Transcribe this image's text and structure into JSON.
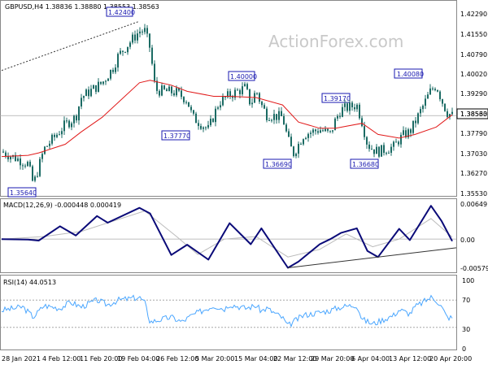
{
  "chart_data": [
    {
      "type": "candlestick",
      "header": "GBPUSD,H4  1.38836 1.38880 1.38553 1.38563",
      "watermark": "ActionForex.com",
      "ylim": [
        1.354,
        1.43
      ],
      "y_ticks": [
        "1.42290",
        "1.41550",
        "1.40790",
        "1.40020",
        "1.39290",
        "1.38530",
        "1.37790",
        "1.37030",
        "1.36270",
        "1.35530"
      ],
      "current_price": "1.38563",
      "annotations": [
        "1.42400",
        "1.40000",
        "1.40080",
        "1.39170",
        "1.37770",
        "1.36690",
        "1.36680",
        "1.35640"
      ],
      "price_path": [
        {
          "date": "28 Jan 2021",
          "price": 1.371
        },
        {
          "date": "2 Feb 2021",
          "price": 1.366
        },
        {
          "date": "3 Feb 2021",
          "price": 1.3575
        },
        {
          "date": "5 Feb 2021",
          "price": 1.372
        },
        {
          "date": "9 Feb 2021",
          "price": 1.382
        },
        {
          "date": "11 Feb 2021",
          "price": 1.385
        },
        {
          "date": "12 Feb 2021",
          "price": 1.393
        },
        {
          "date": "16 Feb 2021",
          "price": 1.399
        },
        {
          "date": "18 Feb 2021",
          "price": 1.405
        },
        {
          "date": "19 Feb 2021",
          "price": 1.41
        },
        {
          "date": "23 Feb 2021",
          "price": 1.42
        },
        {
          "date": "24 Feb 2021",
          "price": 1.42
        },
        {
          "date": "25 Feb 2021",
          "price": 1.413
        },
        {
          "date": "26 Feb 2021",
          "price": 1.396
        },
        {
          "date": "2 Mar 2021",
          "price": 1.395
        },
        {
          "date": "4 Mar 2021",
          "price": 1.392
        },
        {
          "date": "5 Mar 2021",
          "price": 1.385
        },
        {
          "date": "8 Mar 2021",
          "price": 1.38
        },
        {
          "date": "10 Mar 2021",
          "price": 1.391
        },
        {
          "date": "12 Mar 2021",
          "price": 1.394
        },
        {
          "date": "15 Mar 2021",
          "price": 1.397
        },
        {
          "date": "16 Mar 2021",
          "price": 1.39
        },
        {
          "date": "17 Mar 2021",
          "price": 1.396
        },
        {
          "date": "18 Mar 2021",
          "price": 1.39
        },
        {
          "date": "19 Mar 2021",
          "price": 1.386
        },
        {
          "date": "22 Mar 2021",
          "price": 1.385
        },
        {
          "date": "23 Mar 2021",
          "price": 1.376
        },
        {
          "date": "24 Mar 2021",
          "price": 1.37
        },
        {
          "date": "25 Mar 2021",
          "price": 1.374
        },
        {
          "date": "26 Mar 2021",
          "price": 1.378
        },
        {
          "date": "29 Mar 2021",
          "price": 1.38
        },
        {
          "date": "31 Mar 2021",
          "price": 1.378
        },
        {
          "date": "1 Apr 2021",
          "price": 1.384
        },
        {
          "date": "2 Apr 2021",
          "price": 1.388
        },
        {
          "date": "5 Apr 2021",
          "price": 1.39
        },
        {
          "date": "6 Apr 2021",
          "price": 1.383
        },
        {
          "date": "7 Apr 2021",
          "price": 1.374
        },
        {
          "date": "8 Apr 2021",
          "price": 1.372
        },
        {
          "date": "9 Apr 2021",
          "price": 1.371
        },
        {
          "date": "12 Apr 2021",
          "price": 1.373
        },
        {
          "date": "13 Apr 2021",
          "price": 1.376
        },
        {
          "date": "14 Apr 2021",
          "price": 1.378
        },
        {
          "date": "15 Apr 2021",
          "price": 1.379
        },
        {
          "date": "16 Apr 2021",
          "price": 1.383
        },
        {
          "date": "19 Apr 2021",
          "price": 1.396
        },
        {
          "date": "20 Apr 2021",
          "price": 1.398
        },
        {
          "date": "21 Apr 2021",
          "price": 1.392
        },
        {
          "date": "22 Apr 2021",
          "price": 1.387
        },
        {
          "date": "23 Apr 2021",
          "price": 1.3856
        }
      ],
      "ma_path": [
        {
          "date": "28 Jan 2021",
          "value": 1.369
        },
        {
          "date": "2 Feb 2021",
          "value": 1.3695
        },
        {
          "date": "4 Feb 2021",
          "value": 1.3705
        },
        {
          "date": "9 Feb 2021",
          "value": 1.374
        },
        {
          "date": "12 Feb 2021",
          "value": 1.379
        },
        {
          "date": "16 Feb 2021",
          "value": 1.385
        },
        {
          "date": "19 Feb 2021",
          "value": 1.391
        },
        {
          "date": "23 Feb 2021",
          "value": 1.399
        },
        {
          "date": "25 Feb 2021",
          "value": 1.4
        },
        {
          "date": "1 Mar 2021",
          "value": 1.398
        },
        {
          "date": "4 Mar 2021",
          "value": 1.3955
        },
        {
          "date": "9 Mar 2021",
          "value": 1.3935
        },
        {
          "date": "12 Mar 2021",
          "value": 1.3935
        },
        {
          "date": "17 Mar 2021",
          "value": 1.393
        },
        {
          "date": "22 Mar 2021",
          "value": 1.39
        },
        {
          "date": "25 Mar 2021",
          "value": 1.383
        },
        {
          "date": "29 Mar 2021",
          "value": 1.3805
        },
        {
          "date": "1 Apr 2021",
          "value": 1.3805
        },
        {
          "date": "6 Apr 2021",
          "value": 1.3825
        },
        {
          "date": "9 Apr 2021",
          "value": 1.378
        },
        {
          "date": "13 Apr 2021",
          "value": 1.3765
        },
        {
          "date": "16 Apr 2021",
          "value": 1.378
        },
        {
          "date": "20 Apr 2021",
          "value": 1.381
        },
        {
          "date": "23 Apr 2021",
          "value": 1.386
        }
      ],
      "x_tick_labels": [
        "28 Jan 2021",
        "4 Feb 12:00",
        "11 Feb 20:00",
        "19 Feb 04:00",
        "26 Feb 12:00",
        "5 Mar 20:00",
        "15 Mar 04:00",
        "22 Mar 12:00",
        "29 Mar 20:00",
        "6 Apr 04:00",
        "13 Apr 12:00",
        "20 Apr 20:00"
      ]
    },
    {
      "type": "line",
      "title": "MACD(12,26,9) -0.000448 0.000419",
      "ylim": [
        -0.006,
        0.007
      ],
      "y_ticks": [
        "0.00649",
        "0.00",
        "-0.00579"
      ],
      "zero": 0.0,
      "macd_path": [
        {
          "date": "28 Jan 2021",
          "value": 0.0
        },
        {
          "date": "2 Feb 2021",
          "value": -0.0001
        },
        {
          "date": "4 Feb 2021",
          "value": -0.0003
        },
        {
          "date": "8 Feb 2021",
          "value": 0.0025
        },
        {
          "date": "11 Feb 2021",
          "value": 0.0007
        },
        {
          "date": "15 Feb 2021",
          "value": 0.0045
        },
        {
          "date": "17 Feb 2021",
          "value": 0.0032
        },
        {
          "date": "23 Feb 2021",
          "value": 0.0061
        },
        {
          "date": "25 Feb 2021",
          "value": 0.005
        },
        {
          "date": "1 Mar 2021",
          "value": -0.0031
        },
        {
          "date": "4 Mar 2021",
          "value": -0.0011
        },
        {
          "date": "8 Mar 2021",
          "value": -0.004
        },
        {
          "date": "12 Mar 2021",
          "value": 0.0031
        },
        {
          "date": "16 Mar 2021",
          "value": -0.001
        },
        {
          "date": "18 Mar 2021",
          "value": 0.0021
        },
        {
          "date": "23 Mar 2021",
          "value": -0.0056
        },
        {
          "date": "25 Mar 2021",
          "value": -0.0044
        },
        {
          "date": "29 Mar 2021",
          "value": -0.001
        },
        {
          "date": "31 Mar 2021",
          "value": 0.0
        },
        {
          "date": "2 Apr 2021",
          "value": 0.0012
        },
        {
          "date": "5 Apr 2021",
          "value": 0.0021
        },
        {
          "date": "7 Apr 2021",
          "value": -0.0023
        },
        {
          "date": "9 Apr 2021",
          "value": -0.0035
        },
        {
          "date": "13 Apr 2021",
          "value": 0.002
        },
        {
          "date": "15 Apr 2021",
          "value": -0.0002
        },
        {
          "date": "19 Apr 2021",
          "value": 0.0065
        },
        {
          "date": "21 Apr 2021",
          "value": 0.0035
        },
        {
          "date": "23 Apr 2021",
          "value": -0.0004
        }
      ],
      "signal_path": [
        {
          "date": "28 Jan 2021",
          "value": 0.0
        },
        {
          "date": "5 Feb 2021",
          "value": 0.0005
        },
        {
          "date": "12 Feb 2021",
          "value": 0.0015
        },
        {
          "date": "18 Feb 2021",
          "value": 0.0035
        },
        {
          "date": "24 Feb 2021",
          "value": 0.0055
        },
        {
          "date": "2 Mar 2021",
          "value": 0.0005
        },
        {
          "date": "6 Mar 2021",
          "value": -0.003
        },
        {
          "date": "11 Mar 2021",
          "value": 0.0
        },
        {
          "date": "17 Mar 2021",
          "value": 0.0005
        },
        {
          "date": "23 Mar 2021",
          "value": -0.0035
        },
        {
          "date": "29 Mar 2021",
          "value": -0.002
        },
        {
          "date": "3 Apr 2021",
          "value": 0.001
        },
        {
          "date": "8 Apr 2021",
          "value": -0.0015
        },
        {
          "date": "13 Apr 2021",
          "value": 0.0
        },
        {
          "date": "19 Apr 2021",
          "value": 0.004
        },
        {
          "date": "23 Apr 2021",
          "value": 0.0004
        }
      ],
      "trendline": [
        {
          "date": "23 Mar 2021",
          "value": -0.0056
        },
        {
          "date": "23 Apr 2021",
          "value": -0.0017
        }
      ]
    },
    {
      "type": "line",
      "title": "RSI(14) 44.0513",
      "ylim": [
        0,
        100
      ],
      "y_ticks": [
        "100",
        "70",
        "30",
        "0"
      ],
      "levels": [
        70,
        30
      ],
      "rsi_path": [
        {
          "date": "28 Jan 2021",
          "value": 55
        },
        {
          "date": "1 Feb 2021",
          "value": 60
        },
        {
          "date": "3 Feb 2021",
          "value": 45
        },
        {
          "date": "5 Feb 2021",
          "value": 62
        },
        {
          "date": "8 Feb 2021",
          "value": 58
        },
        {
          "date": "10 Feb 2021",
          "value": 67
        },
        {
          "date": "12 Feb 2021",
          "value": 60
        },
        {
          "date": "15 Feb 2021",
          "value": 70
        },
        {
          "date": "17 Feb 2021",
          "value": 63
        },
        {
          "date": "19 Feb 2021",
          "value": 70
        },
        {
          "date": "23 Feb 2021",
          "value": 74
        },
        {
          "date": "24 Feb 2021",
          "value": 66
        },
        {
          "date": "25 Feb 2021",
          "value": 38
        },
        {
          "date": "1 Mar 2021",
          "value": 45
        },
        {
          "date": "3 Mar 2021",
          "value": 38
        },
        {
          "date": "5 Mar 2021",
          "value": 48
        },
        {
          "date": "9 Mar 2021",
          "value": 62
        },
        {
          "date": "11 Mar 2021",
          "value": 57
        },
        {
          "date": "12 Mar 2021",
          "value": 64
        },
        {
          "date": "15 Mar 2021",
          "value": 58
        },
        {
          "date": "17 Mar 2021",
          "value": 62
        },
        {
          "date": "18 Mar 2021",
          "value": 54
        },
        {
          "date": "19 Mar 2021",
          "value": 58
        },
        {
          "date": "22 Mar 2021",
          "value": 44
        },
        {
          "date": "23 Mar 2021",
          "value": 32
        },
        {
          "date": "24 Mar 2021",
          "value": 38
        },
        {
          "date": "26 Mar 2021",
          "value": 48
        },
        {
          "date": "29 Mar 2021",
          "value": 52
        },
        {
          "date": "31 Mar 2021",
          "value": 55
        },
        {
          "date": "2 Apr 2021",
          "value": 60
        },
        {
          "date": "5 Apr 2021",
          "value": 63
        },
        {
          "date": "6 Apr 2021",
          "value": 42
        },
        {
          "date": "8 Apr 2021",
          "value": 35
        },
        {
          "date": "12 Apr 2021",
          "value": 48
        },
        {
          "date": "13 Apr 2021",
          "value": 56
        },
        {
          "date": "15 Apr 2021",
          "value": 50
        },
        {
          "date": "16 Apr 2021",
          "value": 60
        },
        {
          "date": "19 Apr 2021",
          "value": 74
        },
        {
          "date": "20 Apr 2021",
          "value": 70
        },
        {
          "date": "21 Apr 2021",
          "value": 60
        },
        {
          "date": "22 Apr 2021",
          "value": 45
        },
        {
          "date": "23 Apr 2021",
          "value": 44
        }
      ]
    }
  ],
  "colors": {
    "candle": "#1b6b64",
    "ma": "#e11a1a",
    "macd": "#0a0a78",
    "signal": "#bbbbbb",
    "rsi": "#4aa6ff",
    "label": "#1a1ab0",
    "grid": "#888888"
  }
}
